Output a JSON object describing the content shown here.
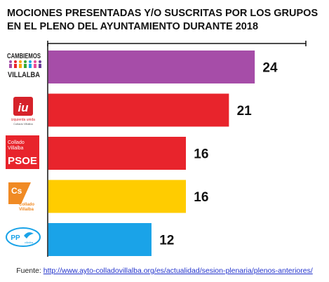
{
  "title_line1": "MOCIONES PRESENTADAS Y/O SUSCRITAS POR LOS GRUPOS",
  "title_line2": "EN EL PLENO DEL AYUNTAMIENTO DURANTE 2018",
  "source_label": "Fuente:",
  "source_url": "http://www.ayto-colladovillalba.org/es/actualidad/sesion-plenaria/plenos-anteriores/",
  "logos": {
    "cambiemos": [
      "CAMBIEMOS",
      "VILLALBA"
    ],
    "iu": [
      "iu",
      "izquierda unida",
      "Collado Villalba"
    ],
    "psoe": [
      "Collado",
      "Villalba",
      "PSOE"
    ],
    "cs": [
      "Cs",
      "Collado",
      "Villalba"
    ],
    "pp": [
      "PP",
      "villalba"
    ]
  },
  "chart_data": {
    "type": "bar",
    "orientation": "horizontal",
    "categories": [
      "CAMBIEMOS VILLALBA",
      "IU Collado Villalba",
      "PSOE Collado Villalba",
      "Cs Collado Villalba",
      "PP Villalba"
    ],
    "values": [
      24,
      21,
      16,
      16,
      12
    ],
    "data_labels": [
      "24",
      "21",
      "16",
      "16",
      "12"
    ],
    "colors": [
      "#a64da8",
      "#e8242c",
      "#e8242c",
      "#ffcc00",
      "#1aa3e8"
    ],
    "xlim": [
      0,
      30
    ],
    "grid": false,
    "title": "MOCIONES PRESENTADAS Y/O SUSCRITAS POR LOS GRUPOS EN EL PLENO DEL AYUNTAMIENTO DURANTE 2018"
  }
}
